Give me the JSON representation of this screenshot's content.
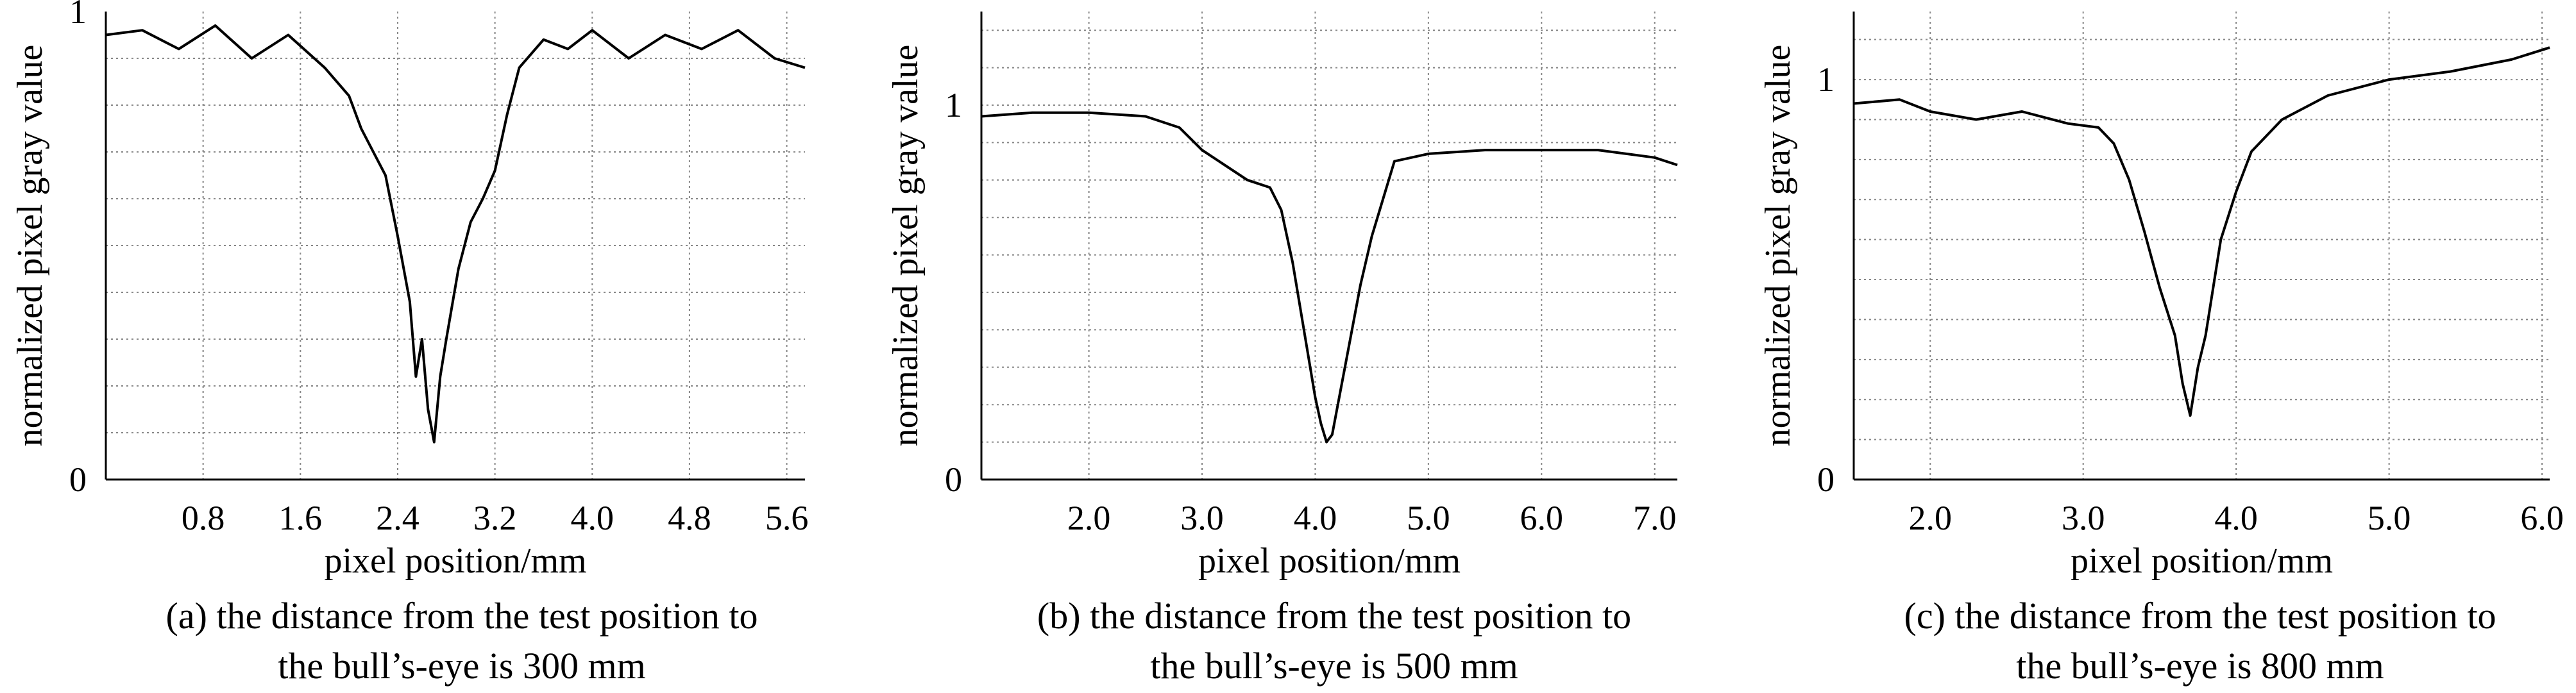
{
  "chart_data": [
    {
      "type": "line",
      "xlabel": "pixel position/mm",
      "ylabel": "normalized pixel gray value",
      "xlim": [
        0.0,
        5.75
      ],
      "ylim": [
        0,
        1
      ],
      "x_ticks": [
        "0.8",
        "1.6",
        "2.4",
        "3.2",
        "4.0",
        "4.8",
        "5.6"
      ],
      "x_tick_values": [
        0.8,
        1.6,
        2.4,
        3.2,
        4.0,
        4.8,
        5.6
      ],
      "y_ticks": [
        "0",
        "1"
      ],
      "y_tick_values": [
        0,
        1
      ],
      "grid": true,
      "series": [
        {
          "x": [
            0.0,
            0.3,
            0.6,
            0.9,
            1.2,
            1.5,
            1.8,
            2.0,
            2.1,
            2.2,
            2.3,
            2.4,
            2.5,
            2.55,
            2.6,
            2.65,
            2.7,
            2.75,
            2.8,
            2.9,
            3.0,
            3.1,
            3.2,
            3.3,
            3.4,
            3.6,
            3.8,
            4.0,
            4.3,
            4.6,
            4.9,
            5.2,
            5.5,
            5.75
          ],
          "y": [
            0.95,
            0.96,
            0.92,
            0.97,
            0.9,
            0.95,
            0.88,
            0.82,
            0.75,
            0.7,
            0.65,
            0.52,
            0.38,
            0.22,
            0.3,
            0.15,
            0.08,
            0.22,
            0.3,
            0.45,
            0.55,
            0.6,
            0.66,
            0.78,
            0.88,
            0.94,
            0.92,
            0.96,
            0.9,
            0.95,
            0.92,
            0.96,
            0.9,
            0.88
          ]
        }
      ],
      "caption_line1": "(a) the distance from the test position to",
      "caption_line2": "the bull’s-eye is 300 mm"
    },
    {
      "type": "line",
      "xlabel": "pixel position/mm",
      "ylabel": "normalized pixel gray value",
      "xlim": [
        1.05,
        7.2
      ],
      "ylim": [
        0,
        1.25
      ],
      "x_ticks": [
        "2.0",
        "3.0",
        "4.0",
        "5.0",
        "6.0",
        "7.0"
      ],
      "x_tick_values": [
        2.0,
        3.0,
        4.0,
        5.0,
        6.0,
        7.0
      ],
      "y_ticks": [
        "0",
        "1"
      ],
      "y_tick_values": [
        0,
        1
      ],
      "grid": true,
      "series": [
        {
          "x": [
            1.05,
            1.5,
            2.0,
            2.5,
            2.8,
            3.0,
            3.2,
            3.4,
            3.6,
            3.7,
            3.8,
            3.9,
            4.0,
            4.05,
            4.1,
            4.15,
            4.2,
            4.3,
            4.4,
            4.5,
            4.6,
            4.7,
            5.0,
            5.5,
            6.0,
            6.5,
            7.0,
            7.2
          ],
          "y": [
            0.97,
            0.98,
            0.98,
            0.97,
            0.94,
            0.88,
            0.84,
            0.8,
            0.78,
            0.72,
            0.58,
            0.4,
            0.22,
            0.15,
            0.1,
            0.12,
            0.2,
            0.36,
            0.52,
            0.65,
            0.75,
            0.85,
            0.87,
            0.88,
            0.88,
            0.88,
            0.86,
            0.84
          ]
        }
      ],
      "caption_line1": "(b) the distance from the test position to",
      "caption_line2": "the bull’s-eye is 500 mm"
    },
    {
      "type": "line",
      "xlabel": "pixel position/mm",
      "ylabel": "normalized pixel gray value",
      "xlim": [
        1.5,
        6.05
      ],
      "ylim": [
        0,
        1.17
      ],
      "x_ticks": [
        "2.0",
        "3.0",
        "4.0",
        "5.0",
        "6.0"
      ],
      "x_tick_values": [
        2.0,
        3.0,
        4.0,
        5.0,
        6.0
      ],
      "y_ticks": [
        "0",
        "1"
      ],
      "y_tick_values": [
        0,
        1
      ],
      "grid": true,
      "series": [
        {
          "x": [
            1.5,
            1.8,
            2.0,
            2.3,
            2.6,
            2.9,
            3.1,
            3.2,
            3.3,
            3.4,
            3.5,
            3.6,
            3.65,
            3.7,
            3.75,
            3.8,
            3.85,
            3.9,
            4.0,
            4.1,
            4.3,
            4.6,
            5.0,
            5.4,
            5.8,
            6.05
          ],
          "y": [
            0.94,
            0.95,
            0.92,
            0.9,
            0.92,
            0.89,
            0.88,
            0.84,
            0.75,
            0.62,
            0.48,
            0.36,
            0.24,
            0.16,
            0.28,
            0.36,
            0.48,
            0.6,
            0.72,
            0.82,
            0.9,
            0.96,
            1.0,
            1.02,
            1.05,
            1.08
          ]
        }
      ],
      "caption_line1": "(c) the distance from the test position to",
      "caption_line2": "the bull’s-eye is 800 mm"
    }
  ]
}
